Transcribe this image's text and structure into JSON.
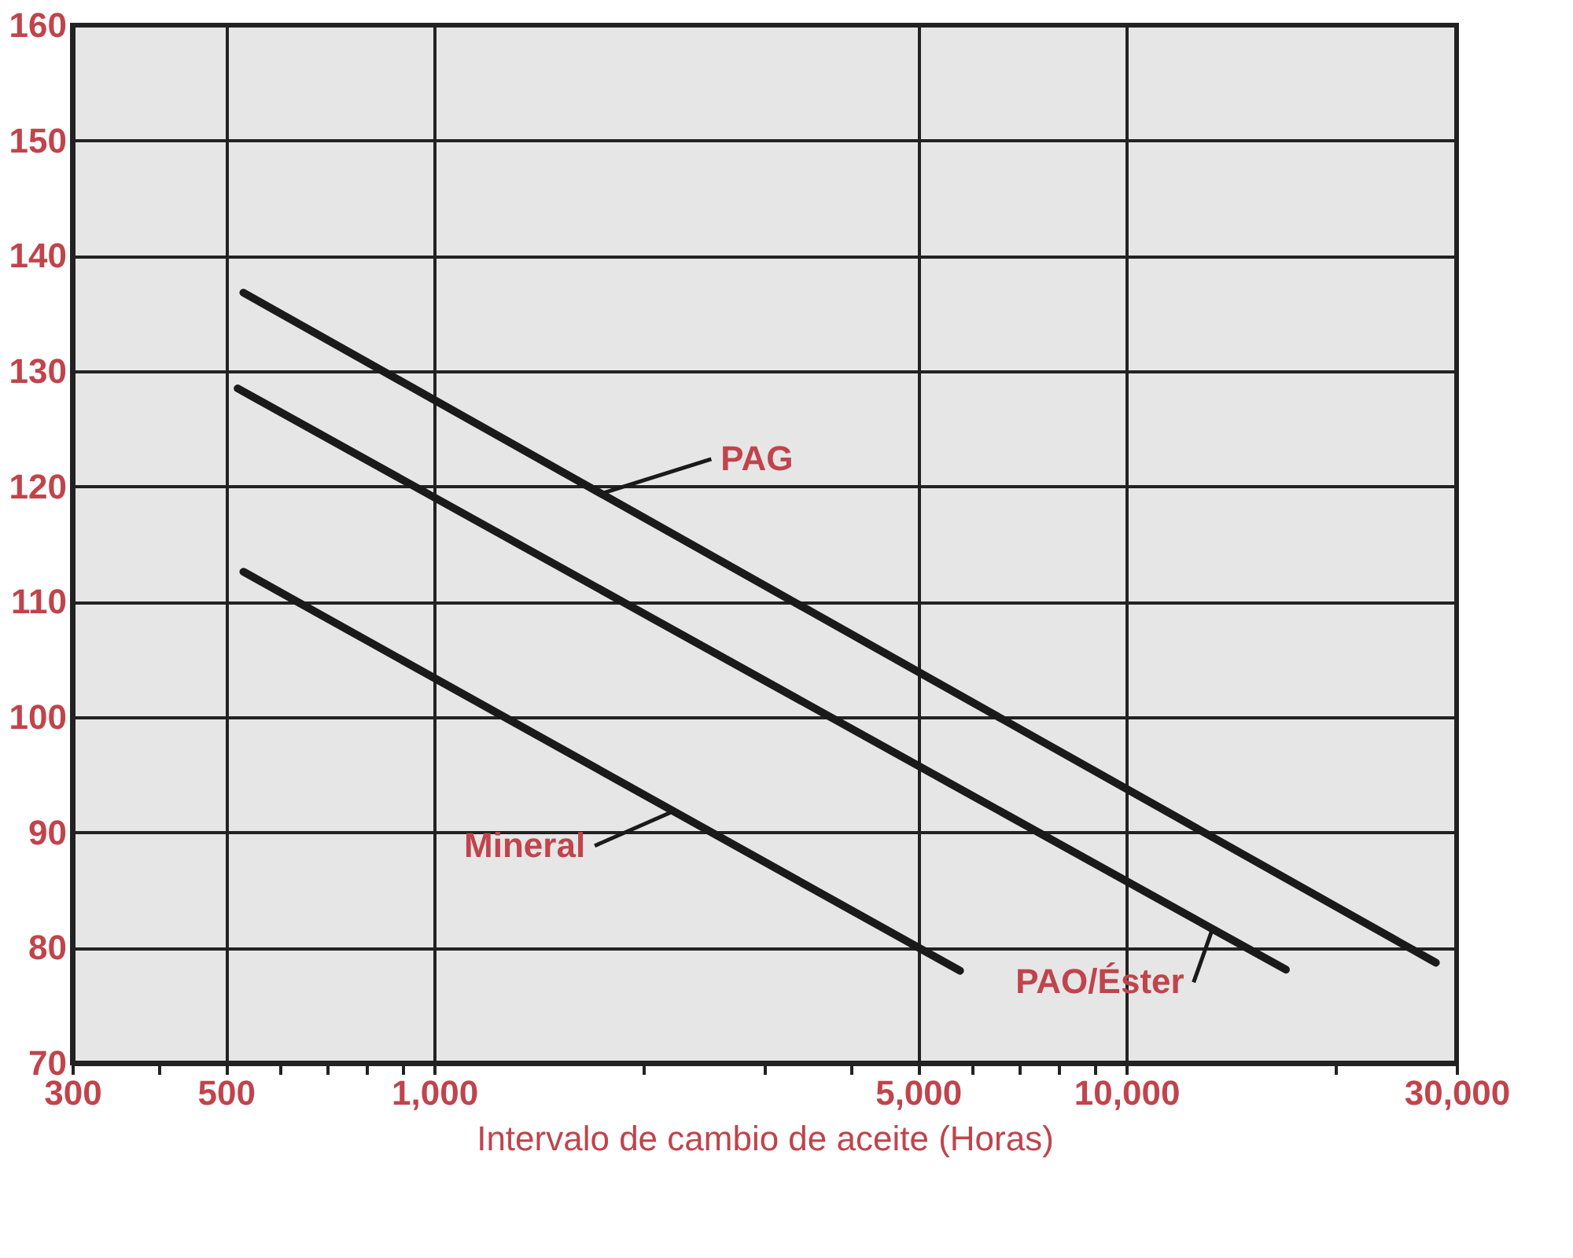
{
  "chart_data": {
    "type": "line",
    "xlabel": "Intervalo de cambio de aceite (Horas)",
    "log": "x",
    "grid": true,
    "line_style": "solid",
    "marker": "none",
    "xlim": [
      300,
      30000
    ],
    "xticks": [
      {
        "value": 300,
        "label": "300"
      },
      {
        "value": 400,
        "label": null
      },
      {
        "value": 500,
        "label": "500"
      },
      {
        "value": 600,
        "label": null
      },
      {
        "value": 700,
        "label": null
      },
      {
        "value": 800,
        "label": null
      },
      {
        "value": 900,
        "label": null
      },
      {
        "value": 1000,
        "label": "1,000"
      },
      {
        "value": 2000,
        "label": null
      },
      {
        "value": 3000,
        "label": null
      },
      {
        "value": 4000,
        "label": null
      },
      {
        "value": 5000,
        "label": "5,000"
      },
      {
        "value": 6000,
        "label": null
      },
      {
        "value": 7000,
        "label": null
      },
      {
        "value": 8000,
        "label": null
      },
      {
        "value": 9000,
        "label": null
      },
      {
        "value": 10000,
        "label": "10,000"
      },
      {
        "value": 20000,
        "label": null
      },
      {
        "value": 30000,
        "label": "30,000"
      }
    ],
    "ylim": [
      70,
      160
    ],
    "yticks": [
      70,
      80,
      90,
      100,
      110,
      120,
      130,
      140,
      150,
      160
    ],
    "series": [
      {
        "name": "PAG",
        "color": "#1a1a1a",
        "x": [
          530,
          28000
        ],
        "values": [
          136.8,
          78.7
        ]
      },
      {
        "name": "PAO/Éster",
        "color": "#1a1a1a",
        "x": [
          520,
          17000
        ],
        "values": [
          128.5,
          78.1
        ]
      },
      {
        "name": "Mineral",
        "color": "#1a1a1a",
        "x": [
          530,
          5750
        ],
        "values": [
          112.6,
          78.0
        ]
      }
    ]
  }
}
